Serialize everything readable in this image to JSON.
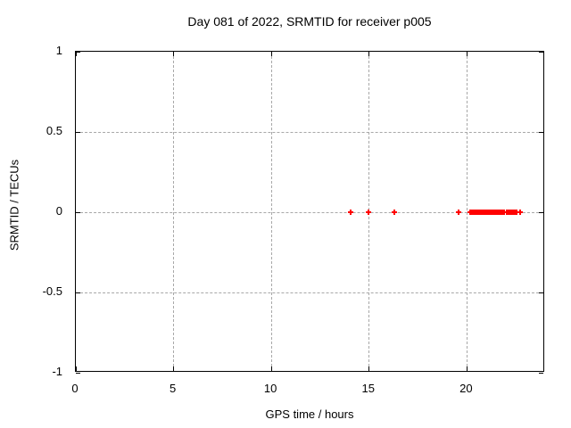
{
  "chart_data": {
    "type": "scatter",
    "title": "Day 081 of 2022, SRMTID for receiver p005",
    "xlabel": "GPS time / hours",
    "ylabel": "SRMTID / TECUs",
    "xlim": [
      0,
      24
    ],
    "ylim": [
      -1,
      1
    ],
    "xticks": [
      0,
      5,
      10,
      15,
      20
    ],
    "xtick_labels": [
      "0",
      "5",
      "10",
      "15",
      "20"
    ],
    "yticks": [
      1,
      0.5,
      0,
      -0.5,
      -1
    ],
    "ytick_labels": [
      "1",
      "0.5",
      "0",
      "-0.5",
      "-1"
    ],
    "grid": true,
    "legend_position": "none",
    "style": {
      "background_color": "#ffffff",
      "axis_color": "#000000",
      "grid_color": "#a8a8a8",
      "text_color": "#000000"
    },
    "series": [
      {
        "name": "SRMTID",
        "marker_symbol": "plus",
        "marker_color": "#ff0000",
        "y_constant": 0,
        "x": [
          14.07,
          14.95,
          16.29,
          19.57,
          20.16,
          20.22,
          20.28,
          20.34,
          20.4,
          20.46,
          20.52,
          20.58,
          20.64,
          20.7,
          20.76,
          20.82,
          20.88,
          20.94,
          21.0,
          21.06,
          21.12,
          21.18,
          21.24,
          21.3,
          21.36,
          21.42,
          21.48,
          21.54,
          21.6,
          21.66,
          21.72,
          21.78,
          21.84,
          21.9,
          22.04,
          22.09,
          22.14,
          22.19,
          22.24,
          22.29,
          22.34,
          22.39,
          22.44,
          22.49,
          22.54,
          22.72
        ]
      }
    ]
  }
}
